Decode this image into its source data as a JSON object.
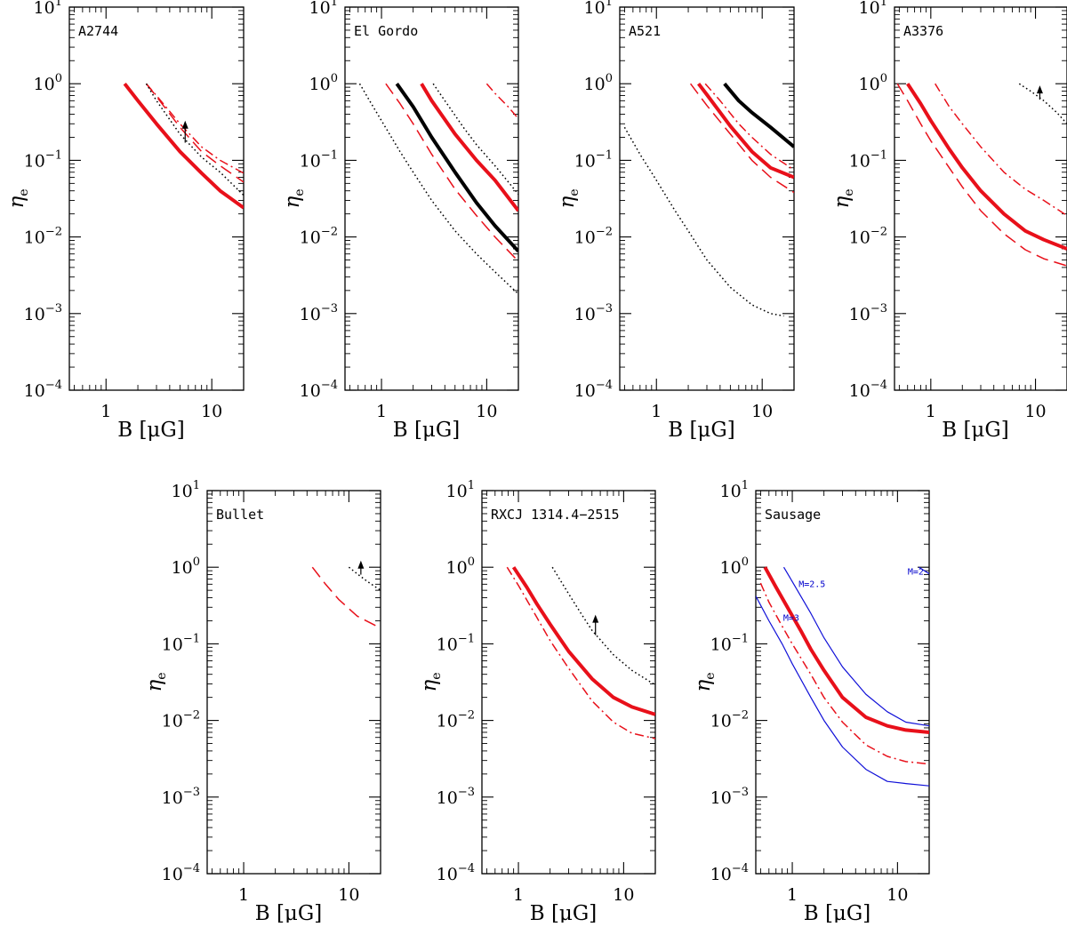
{
  "figure": {
    "description_free": true,
    "x_axis_title": "B [μG]",
    "y_axis_title": "η_e",
    "y_tick_labels": [
      "10^1",
      "10^0",
      "10^-1",
      "10^-2",
      "10^-3",
      "10^-4"
    ],
    "x_tick_labels": [
      "1",
      "10"
    ]
  },
  "colors": {
    "red": "#e8101a",
    "black": "#000000",
    "blue": "#1010d8"
  },
  "chart_data": [
    {
      "type": "line",
      "title": "A2744",
      "xlabel": "B [μG]",
      "ylabel": "η_e",
      "xscale": "log",
      "yscale": "log",
      "xlim": [
        0.45,
        20
      ],
      "ylim": [
        0.0001,
        10
      ],
      "series": [
        {
          "name": "solid-red-thick",
          "color": "red",
          "style": "solid",
          "width": 4,
          "x": [
            1.5,
            2,
            3,
            5,
            8,
            12,
            20
          ],
          "y": [
            1.0,
            0.6,
            0.3,
            0.13,
            0.068,
            0.04,
            0.024
          ]
        },
        {
          "name": "dashdot-red",
          "color": "red",
          "style": "dashdot",
          "width": 1.5,
          "x": [
            2.4,
            3,
            5,
            8,
            12,
            20
          ],
          "y": [
            1.0,
            0.7,
            0.3,
            0.15,
            0.1,
            0.068
          ]
        },
        {
          "name": "dashed-red",
          "color": "red",
          "style": "dashed",
          "width": 1.5,
          "x": [
            2.4,
            3,
            5,
            8,
            12,
            20
          ],
          "y": [
            1.0,
            0.68,
            0.27,
            0.13,
            0.085,
            0.052
          ]
        },
        {
          "name": "dotted-black",
          "color": "black",
          "style": "dotted",
          "width": 1.5,
          "x": [
            2.4,
            3,
            5,
            8,
            12,
            20
          ],
          "y": [
            1.0,
            0.6,
            0.22,
            0.11,
            0.07,
            0.035
          ]
        }
      ],
      "arrows": [
        {
          "x": 5.6,
          "y_from": 0.17,
          "y_to": 0.33
        }
      ]
    },
    {
      "type": "line",
      "title": "El Gordo",
      "xlabel": "B [μG]",
      "ylabel": "η_e",
      "xscale": "log",
      "yscale": "log",
      "xlim": [
        0.45,
        20
      ],
      "ylim": [
        0.0001,
        10
      ],
      "series": [
        {
          "name": "dotted-black-left",
          "color": "black",
          "style": "dotted",
          "width": 1.5,
          "x": [
            0.62,
            0.8,
            1,
            1.5,
            2,
            3,
            5,
            8,
            12,
            20
          ],
          "y": [
            1.0,
            0.55,
            0.33,
            0.13,
            0.07,
            0.03,
            0.012,
            0.006,
            0.0035,
            0.0018
          ]
        },
        {
          "name": "dashed-red-left",
          "color": "red",
          "style": "dashed",
          "width": 1.5,
          "x": [
            1.1,
            1.5,
            2,
            3,
            5,
            8,
            12,
            20
          ],
          "y": [
            1.0,
            0.55,
            0.3,
            0.12,
            0.042,
            0.019,
            0.01,
            0.0048
          ]
        },
        {
          "name": "solid-black-thick",
          "color": "black",
          "style": "solid",
          "width": 4,
          "x": [
            1.4,
            2,
            3,
            5,
            8,
            12,
            20
          ],
          "y": [
            1.0,
            0.5,
            0.2,
            0.07,
            0.028,
            0.014,
            0.0065
          ]
        },
        {
          "name": "solid-red-thick",
          "color": "red",
          "style": "solid",
          "width": 4,
          "x": [
            2.4,
            3,
            5,
            8,
            12,
            20
          ],
          "y": [
            1.0,
            0.6,
            0.22,
            0.1,
            0.055,
            0.022
          ]
        },
        {
          "name": "dotted-black-right",
          "color": "black",
          "style": "dotted",
          "width": 1.5,
          "x": [
            3.1,
            4,
            6,
            8,
            12,
            20
          ],
          "y": [
            1.0,
            0.6,
            0.27,
            0.16,
            0.085,
            0.036
          ]
        },
        {
          "name": "dashdot-red-right",
          "color": "red",
          "style": "dashdot",
          "width": 1.5,
          "x": [
            10,
            12,
            16,
            20
          ],
          "y": [
            1.0,
            0.75,
            0.5,
            0.35
          ]
        }
      ],
      "arrows": []
    },
    {
      "type": "line",
      "title": "A521",
      "xlabel": "B [μG]",
      "ylabel": "η_e",
      "xscale": "log",
      "yscale": "log",
      "xlim": [
        0.45,
        20
      ],
      "ylim": [
        0.0001,
        10
      ],
      "series": [
        {
          "name": "dotted-black",
          "color": "black",
          "style": "dotted",
          "width": 1.5,
          "x": [
            0.5,
            0.7,
            1,
            1.5,
            2,
            3,
            5,
            8,
            12,
            16
          ],
          "y": [
            0.27,
            0.12,
            0.055,
            0.022,
            0.012,
            0.005,
            0.0022,
            0.0013,
            0.001,
            0.00093
          ]
        },
        {
          "name": "dashed-red",
          "color": "red",
          "style": "dashed",
          "width": 1.5,
          "x": [
            2.1,
            3,
            5,
            8,
            12,
            20
          ],
          "y": [
            1.0,
            0.52,
            0.22,
            0.1,
            0.06,
            0.038
          ]
        },
        {
          "name": "solid-red-thick",
          "color": "red",
          "style": "solid",
          "width": 4,
          "x": [
            2.5,
            3,
            5,
            8,
            12,
            20
          ],
          "y": [
            1.0,
            0.72,
            0.28,
            0.13,
            0.08,
            0.06
          ]
        },
        {
          "name": "dashdot-red",
          "color": "red",
          "style": "dashdot",
          "width": 1.5,
          "x": [
            2.9,
            4,
            6,
            8,
            12,
            20
          ],
          "y": [
            1.0,
            0.6,
            0.3,
            0.2,
            0.12,
            0.075
          ]
        },
        {
          "name": "solid-black-thick",
          "color": "black",
          "style": "solid",
          "width": 4,
          "x": [
            4.4,
            6,
            8,
            12,
            20
          ],
          "y": [
            1.0,
            0.6,
            0.42,
            0.27,
            0.15
          ]
        }
      ],
      "arrows": []
    },
    {
      "type": "line",
      "title": "A3376",
      "xlabel": "B [μG]",
      "ylabel": "η_e",
      "xscale": "log",
      "yscale": "log",
      "xlim": [
        0.45,
        20
      ],
      "ylim": [
        0.0001,
        10
      ],
      "series": [
        {
          "name": "dashed-red",
          "color": "red",
          "style": "dashed",
          "width": 1.5,
          "x": [
            0.48,
            0.6,
            0.8,
            1,
            1.5,
            2,
            3,
            5,
            8,
            12,
            20
          ],
          "y": [
            1.0,
            0.6,
            0.3,
            0.18,
            0.08,
            0.045,
            0.022,
            0.011,
            0.0068,
            0.0052,
            0.0042
          ]
        },
        {
          "name": "solid-red-thick",
          "color": "red",
          "style": "solid",
          "width": 4,
          "x": [
            0.6,
            0.8,
            1,
            1.5,
            2,
            3,
            5,
            8,
            12,
            20
          ],
          "y": [
            1.0,
            0.55,
            0.33,
            0.14,
            0.08,
            0.04,
            0.02,
            0.012,
            0.0092,
            0.007
          ]
        },
        {
          "name": "dashdot-red",
          "color": "red",
          "style": "dashdot",
          "width": 1.5,
          "x": [
            1.1,
            1.5,
            2,
            3,
            5,
            8,
            12,
            20
          ],
          "y": [
            1.0,
            0.5,
            0.3,
            0.15,
            0.07,
            0.042,
            0.03,
            0.019
          ]
        },
        {
          "name": "dotted-black",
          "color": "black",
          "style": "dotted",
          "width": 1.5,
          "x": [
            7,
            9,
            12,
            16,
            20
          ],
          "y": [
            1.0,
            0.8,
            0.6,
            0.42,
            0.3
          ]
        }
      ],
      "arrows": [
        {
          "x": 11,
          "y_from": 0.62,
          "y_to": 0.95
        }
      ]
    },
    {
      "type": "line",
      "title": "Bullet",
      "xlabel": "B [μG]",
      "ylabel": "η_e",
      "xscale": "log",
      "yscale": "log",
      "xlim": [
        0.45,
        20
      ],
      "ylim": [
        0.0001,
        10
      ],
      "series": [
        {
          "name": "dashed-red",
          "color": "red",
          "style": "dashed",
          "width": 1.5,
          "x": [
            4.5,
            6,
            8,
            12,
            20
          ],
          "y": [
            1.0,
            0.6,
            0.38,
            0.23,
            0.16
          ]
        },
        {
          "name": "dotted-black",
          "color": "black",
          "style": "dotted",
          "width": 1.5,
          "x": [
            10,
            12,
            15,
            20
          ],
          "y": [
            1.0,
            0.82,
            0.65,
            0.5
          ]
        }
      ],
      "arrows": [
        {
          "x": 13,
          "y_from": 0.8,
          "y_to": 1.22
        }
      ]
    },
    {
      "type": "line",
      "title": "RXCJ 1314.4−2515",
      "xlabel": "B [μG]",
      "ylabel": "η_e",
      "xscale": "log",
      "yscale": "log",
      "xlim": [
        0.45,
        20
      ],
      "ylim": [
        0.0001,
        10
      ],
      "series": [
        {
          "name": "dashdot-red",
          "color": "red",
          "style": "dashdot",
          "width": 1.5,
          "x": [
            0.78,
            1,
            1.5,
            2,
            3,
            5,
            8,
            12,
            20
          ],
          "y": [
            1.0,
            0.58,
            0.22,
            0.11,
            0.048,
            0.018,
            0.0095,
            0.0068,
            0.0058
          ]
        },
        {
          "name": "solid-red-thick",
          "color": "red",
          "style": "solid",
          "width": 4,
          "x": [
            0.9,
            1.2,
            1.5,
            2,
            3,
            5,
            8,
            12,
            20
          ],
          "y": [
            1.0,
            0.55,
            0.33,
            0.18,
            0.08,
            0.035,
            0.02,
            0.015,
            0.012
          ]
        },
        {
          "name": "dotted-black",
          "color": "black",
          "style": "dotted",
          "width": 1.5,
          "x": [
            2.1,
            3,
            4,
            5,
            8,
            12,
            20
          ],
          "y": [
            1.0,
            0.45,
            0.24,
            0.15,
            0.072,
            0.045,
            0.029
          ]
        }
      ],
      "arrows": [
        {
          "x": 5.4,
          "y_from": 0.13,
          "y_to": 0.24
        }
      ]
    },
    {
      "type": "line",
      "title": "Sausage",
      "xlabel": "B [μG]",
      "ylabel": "η_e",
      "xscale": "log",
      "yscale": "log",
      "xlim": [
        0.45,
        20
      ],
      "ylim": [
        0.0001,
        10
      ],
      "series": [
        {
          "name": "blue-M3",
          "color": "blue",
          "style": "solid",
          "width": 1.2,
          "x": [
            0.45,
            0.6,
            0.8,
            1,
            1.5,
            2,
            3,
            5,
            8,
            12,
            20
          ],
          "y": [
            0.42,
            0.2,
            0.1,
            0.055,
            0.02,
            0.01,
            0.0045,
            0.0023,
            0.0016,
            0.0015,
            0.0014
          ]
        },
        {
          "name": "dashdot-red",
          "color": "red",
          "style": "dashdot",
          "width": 1.5,
          "x": [
            0.5,
            0.6,
            0.8,
            1,
            1.5,
            2,
            3,
            5,
            8,
            12,
            20
          ],
          "y": [
            0.62,
            0.35,
            0.17,
            0.1,
            0.04,
            0.02,
            0.0095,
            0.0048,
            0.0034,
            0.0029,
            0.0027
          ]
        },
        {
          "name": "solid-red-thick",
          "color": "red",
          "style": "solid",
          "width": 4,
          "x": [
            0.55,
            0.7,
            0.9,
            1.2,
            1.5,
            2,
            3,
            5,
            8,
            12,
            20
          ],
          "y": [
            1.0,
            0.55,
            0.3,
            0.15,
            0.085,
            0.045,
            0.02,
            0.011,
            0.0085,
            0.0075,
            0.007
          ]
        },
        {
          "name": "blue-M2.5",
          "color": "blue",
          "style": "solid",
          "width": 1.2,
          "x": [
            0.83,
            1,
            1.5,
            2,
            3,
            5,
            8,
            12,
            20
          ],
          "y": [
            1.0,
            0.65,
            0.25,
            0.12,
            0.05,
            0.022,
            0.013,
            0.0095,
            0.0085
          ]
        },
        {
          "name": "blue-M2",
          "color": "blue",
          "style": "solid",
          "width": 1.2,
          "x": [
            16,
            18,
            20
          ],
          "y": [
            1.0,
            0.9,
            0.82
          ]
        }
      ],
      "annotations": [
        {
          "text": "M=3",
          "x": 0.82,
          "y": 0.2
        },
        {
          "text": "M=2.5",
          "x": 1.15,
          "y": 0.55
        },
        {
          "text": "M=2",
          "x": 12.5,
          "y": 0.8
        }
      ],
      "arrows": []
    }
  ]
}
